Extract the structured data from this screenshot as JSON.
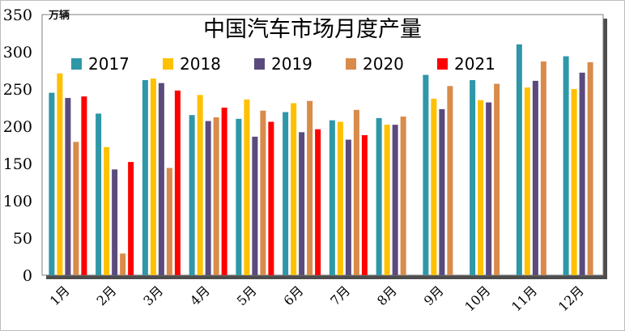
{
  "chart_data": {
    "type": "bar",
    "title": "中国汽车市场月度产量",
    "ylabel": "万辆",
    "xlabel": "",
    "ylim": [
      0,
      350
    ],
    "yticks": [
      0,
      50,
      100,
      150,
      200,
      250,
      300,
      350
    ],
    "grid": false,
    "legend_position": "top-left",
    "categories": [
      "1月",
      "2月",
      "3月",
      "4月",
      "5月",
      "6月",
      "7月",
      "8月",
      "9月",
      "10月",
      "11月",
      "12月"
    ],
    "series": [
      {
        "name": "2017",
        "color": "#2e97a8",
        "values": [
          245,
          217,
          262,
          215,
          210,
          219,
          208,
          211,
          269,
          262,
          310,
          294
        ]
      },
      {
        "name": "2018",
        "color": "#ffc000",
        "values": [
          271,
          172,
          264,
          242,
          236,
          231,
          206,
          202,
          237,
          235,
          252,
          250
        ]
      },
      {
        "name": "2019",
        "color": "#5b4a7d",
        "values": [
          238,
          142,
          258,
          207,
          186,
          192,
          182,
          202,
          223,
          232,
          261,
          272
        ]
      },
      {
        "name": "2020",
        "color": "#d98b4a",
        "values": [
          179,
          29,
          144,
          212,
          221,
          234,
          222,
          213,
          254,
          257,
          287,
          286
        ]
      },
      {
        "name": "2021",
        "color": "#ff0000",
        "values": [
          240,
          152,
          248,
          225,
          206,
          196,
          188,
          null,
          null,
          null,
          null,
          null
        ]
      }
    ]
  }
}
